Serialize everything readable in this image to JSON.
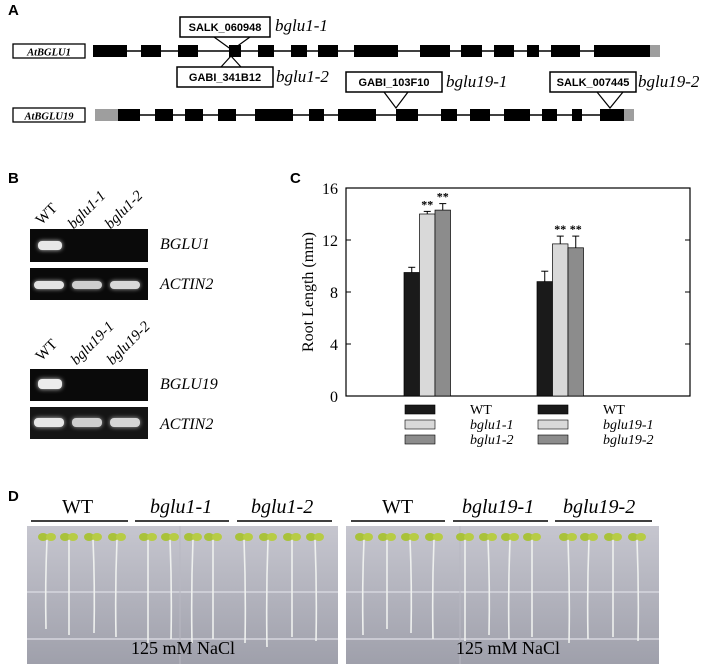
{
  "panels": {
    "A": "A",
    "B": "B",
    "C": "C",
    "D": "D"
  },
  "panel_a": {
    "gene1": "AtBGLU1",
    "gene2": "AtBGLU19",
    "insert1_top": "SALK_060948",
    "insert1_top_allele": "bglu1-1",
    "insert1_bottom": "GABI_341B12",
    "insert1_bottom_allele": "bglu1-2",
    "insert2_a": "GABI_103F10",
    "insert2_a_allele": "bglu19-1",
    "insert2_b": "SALK_007445",
    "insert2_b_allele": "bglu19-2"
  },
  "panel_b": {
    "top_lanes": [
      "WT",
      "bglu1-1",
      "bglu1-2"
    ],
    "bottom_lanes": [
      "WT",
      "bglu19-1",
      "bglu19-2"
    ],
    "gene_top_1": "BGLU1",
    "gene_top_2": "ACTIN2",
    "gene_bottom_1": "BGLU19",
    "gene_bottom_2": "ACTIN2"
  },
  "chart_data": {
    "type": "bar",
    "ylabel": "Root Length (mm)",
    "ylim": [
      0,
      16
    ],
    "yticks": [
      0,
      4,
      8,
      12,
      16
    ],
    "groups": [
      {
        "bars": [
          {
            "name": "WT",
            "value": 9.5,
            "error": 0.4,
            "sig": "",
            "color": "#1a1a1a"
          },
          {
            "name": "bglu1-1",
            "value": 14.0,
            "error": 0.2,
            "sig": "**",
            "color": "#d9d9d9"
          },
          {
            "name": "bglu1-2",
            "value": 14.3,
            "error": 0.5,
            "sig": "**",
            "color": "#8c8c8c"
          }
        ]
      },
      {
        "bars": [
          {
            "name": "WT",
            "value": 8.8,
            "error": 0.8,
            "sig": "",
            "color": "#1a1a1a"
          },
          {
            "name": "bglu19-1",
            "value": 11.7,
            "error": 0.6,
            "sig": "**",
            "color": "#d9d9d9"
          },
          {
            "name": "bglu19-2",
            "value": 11.4,
            "error": 0.9,
            "sig": "**",
            "color": "#8c8c8c"
          }
        ]
      }
    ]
  },
  "panel_d": {
    "left_labels": [
      "WT",
      "bglu1-1",
      "bglu1-2"
    ],
    "right_labels": [
      "WT",
      "bglu19-1",
      "bglu19-2"
    ],
    "treatment": "125 mM NaCl"
  }
}
